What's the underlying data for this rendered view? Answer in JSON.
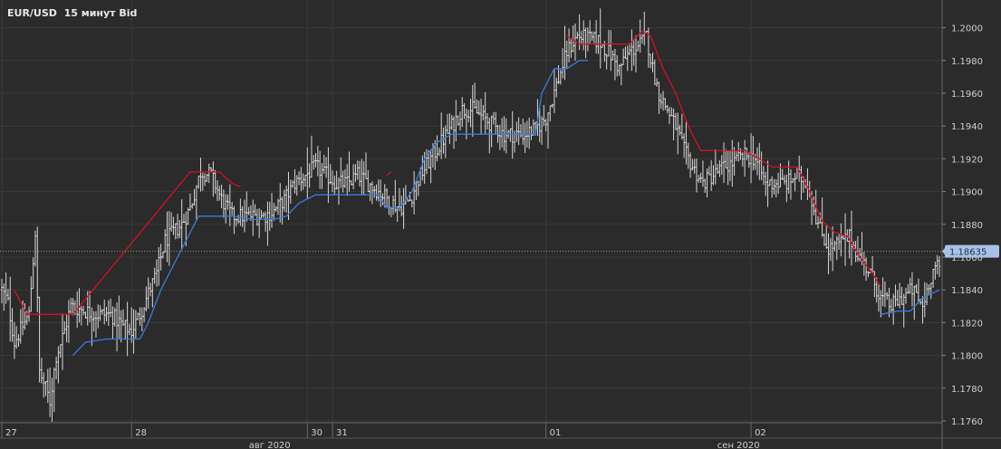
{
  "title": "EUR/USD  15 минут Bid",
  "current_price_label": "1.18635",
  "colors": {
    "background": "#2b2b2b",
    "bars": "#d8d8d8",
    "upper_band": "#d4112a",
    "lower_band": "#3a7be0",
    "grid": "#3a3a3a",
    "axis_text": "#d0d0d0",
    "price_tag_bg": "#a9c1e6"
  },
  "chart_data": {
    "type": "ohlc",
    "instrument": "EUR/USD",
    "timeframe": "15 минут",
    "price_side": "Bid",
    "ylim": [
      1.1755,
      1.201
    ],
    "y_ticks": [
      1.176,
      1.178,
      1.18,
      1.182,
      1.184,
      1.186,
      1.188,
      1.19,
      1.192,
      1.194,
      1.196,
      1.198,
      1.2
    ],
    "y_tick_labels": [
      "1.1760",
      "1.1780",
      "1.1800",
      "1.1820",
      "1.1840",
      "1.1860",
      "1.1880",
      "1.1900",
      "1.1920",
      "1.1940",
      "1.1960",
      "1.1980",
      "1.2000"
    ],
    "x_day_labels": [
      {
        "label": "27",
        "x": 0
      },
      {
        "label": "28",
        "x": 62
      },
      {
        "label": "30",
        "x": 146
      },
      {
        "label": "31",
        "x": 158
      },
      {
        "label": "01",
        "x": 260
      },
      {
        "label": "02",
        "x": 358
      }
    ],
    "x_month_labels": [
      {
        "label": "авг 2020",
        "x": 128
      },
      {
        "label": "сен 2020",
        "x": 352
      }
    ],
    "x_range": [
      0,
      448
    ],
    "current_price": 1.18635,
    "current_price_line": "dotted",
    "price_keypoints": [
      [
        0,
        1.184
      ],
      [
        3,
        1.1832
      ],
      [
        6,
        1.1808
      ],
      [
        10,
        1.1818
      ],
      [
        13,
        1.1825
      ],
      [
        16,
        1.1875
      ],
      [
        18,
        1.179
      ],
      [
        21,
        1.178
      ],
      [
        23,
        1.1772
      ],
      [
        26,
        1.18
      ],
      [
        30,
        1.1815
      ],
      [
        33,
        1.183
      ],
      [
        38,
        1.1828
      ],
      [
        45,
        1.1825
      ],
      [
        52,
        1.1825
      ],
      [
        58,
        1.1818
      ],
      [
        62,
        1.1815
      ],
      [
        66,
        1.1825
      ],
      [
        70,
        1.1838
      ],
      [
        74,
        1.185
      ],
      [
        78,
        1.187
      ],
      [
        82,
        1.1875
      ],
      [
        86,
        1.188
      ],
      [
        90,
        1.189
      ],
      [
        95,
        1.1912
      ],
      [
        100,
        1.191
      ],
      [
        105,
        1.1895
      ],
      [
        110,
        1.1885
      ],
      [
        115,
        1.1885
      ],
      [
        120,
        1.1885
      ],
      [
        125,
        1.1885
      ],
      [
        130,
        1.1888
      ],
      [
        135,
        1.1895
      ],
      [
        140,
        1.1905
      ],
      [
        145,
        1.191
      ],
      [
        150,
        1.1915
      ],
      [
        155,
        1.191
      ],
      [
        160,
        1.1905
      ],
      [
        165,
        1.1905
      ],
      [
        170,
        1.191
      ],
      [
        175,
        1.1905
      ],
      [
        180,
        1.19
      ],
      [
        185,
        1.1895
      ],
      [
        190,
        1.189
      ],
      [
        195,
        1.1895
      ],
      [
        200,
        1.191
      ],
      [
        205,
        1.192
      ],
      [
        210,
        1.193
      ],
      [
        215,
        1.194
      ],
      [
        220,
        1.195
      ],
      [
        225,
        1.195
      ],
      [
        230,
        1.1945
      ],
      [
        235,
        1.194
      ],
      [
        240,
        1.1935
      ],
      [
        245,
        1.1935
      ],
      [
        250,
        1.1935
      ],
      [
        255,
        1.1938
      ],
      [
        260,
        1.1945
      ],
      [
        265,
        1.1965
      ],
      [
        270,
        1.1985
      ],
      [
        275,
        1.1995
      ],
      [
        280,
        1.1993
      ],
      [
        285,
        1.1992
      ],
      [
        290,
        1.1985
      ],
      [
        295,
        1.1975
      ],
      [
        300,
        1.1985
      ],
      [
        305,
        1.199
      ],
      [
        308,
        1.1995
      ],
      [
        311,
        1.1975
      ],
      [
        314,
        1.196
      ],
      [
        318,
        1.195
      ],
      [
        322,
        1.194
      ],
      [
        326,
        1.1925
      ],
      [
        330,
        1.1915
      ],
      [
        335,
        1.1905
      ],
      [
        340,
        1.191
      ],
      [
        345,
        1.1915
      ],
      [
        350,
        1.1918
      ],
      [
        355,
        1.1922
      ],
      [
        360,
        1.192
      ],
      [
        365,
        1.1905
      ],
      [
        370,
        1.1905
      ],
      [
        375,
        1.1905
      ],
      [
        380,
        1.191
      ],
      [
        385,
        1.1905
      ],
      [
        390,
        1.188
      ],
      [
        395,
        1.1865
      ],
      [
        400,
        1.1868
      ],
      [
        405,
        1.1872
      ],
      [
        410,
        1.186
      ],
      [
        415,
        1.185
      ],
      [
        420,
        1.1835
      ],
      [
        425,
        1.183
      ],
      [
        430,
        1.1835
      ],
      [
        435,
        1.184
      ],
      [
        440,
        1.183
      ],
      [
        443,
        1.1845
      ],
      [
        446,
        1.1855
      ],
      [
        448,
        1.1852
      ]
    ],
    "upper_band_keypoints": [
      [
        6,
        1.184
      ],
      [
        12,
        1.1825
      ],
      [
        20,
        1.1825
      ],
      [
        32,
        1.1825
      ],
      [
        34,
        1.1825
      ],
      [
        90,
        1.1912
      ],
      [
        104,
        1.1912
      ],
      [
        110,
        1.1905
      ],
      [
        114,
        1.1903
      ],
      [
        184,
        1.191
      ],
      [
        186,
        1.1912
      ],
      [
        270,
        1.1995
      ],
      [
        276,
        1.199
      ],
      [
        285,
        1.199
      ],
      [
        288,
        1.199
      ],
      [
        300,
        1.199
      ],
      [
        306,
        1.1998
      ],
      [
        310,
        1.1995
      ],
      [
        316,
        1.1975
      ],
      [
        322,
        1.196
      ],
      [
        328,
        1.194
      ],
      [
        334,
        1.1925
      ],
      [
        345,
        1.1925
      ],
      [
        355,
        1.1925
      ],
      [
        362,
        1.192
      ],
      [
        368,
        1.1915
      ],
      [
        375,
        1.1915
      ],
      [
        380,
        1.1915
      ],
      [
        386,
        1.19
      ],
      [
        392,
        1.1882
      ],
      [
        398,
        1.1875
      ],
      [
        404,
        1.1873
      ],
      [
        410,
        1.186
      ],
      [
        416,
        1.185
      ],
      [
        420,
        1.1842
      ]
    ],
    "lower_band_keypoints": [
      [
        34,
        1.18
      ],
      [
        40,
        1.1808
      ],
      [
        50,
        1.181
      ],
      [
        60,
        1.181
      ],
      [
        66,
        1.181
      ],
      [
        70,
        1.182
      ],
      [
        76,
        1.184
      ],
      [
        82,
        1.1855
      ],
      [
        88,
        1.187
      ],
      [
        94,
        1.1885
      ],
      [
        110,
        1.1885
      ],
      [
        120,
        1.1883
      ],
      [
        130,
        1.1883
      ],
      [
        136,
        1.1885
      ],
      [
        142,
        1.1893
      ],
      [
        150,
        1.1898
      ],
      [
        160,
        1.1898
      ],
      [
        170,
        1.1898
      ],
      [
        180,
        1.1898
      ],
      [
        184,
        1.189
      ],
      [
        190,
        1.189
      ],
      [
        196,
        1.19
      ],
      [
        202,
        1.192
      ],
      [
        208,
        1.193
      ],
      [
        215,
        1.1935
      ],
      [
        230,
        1.1935
      ],
      [
        240,
        1.1935
      ],
      [
        250,
        1.1935
      ],
      [
        255,
        1.1935
      ],
      [
        258,
        1.196
      ],
      [
        264,
        1.1975
      ],
      [
        270,
        1.1975
      ],
      [
        276,
        1.198
      ],
      [
        280,
        1.198
      ],
      [
        420,
        1.1825
      ],
      [
        428,
        1.1827
      ],
      [
        434,
        1.1827
      ],
      [
        440,
        1.1835
      ],
      [
        448,
        1.184
      ]
    ]
  }
}
